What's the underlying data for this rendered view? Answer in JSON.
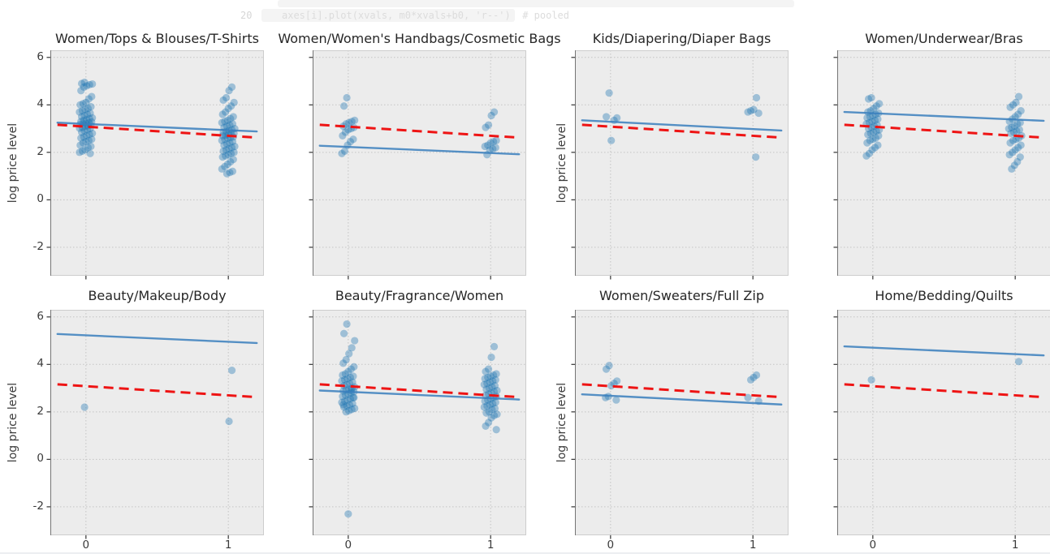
{
  "notebook": {
    "line_number": "20",
    "code_line": "axes[i].plot(xvals, m0*xvals+b0, 'r--')  # pooled"
  },
  "figure": {
    "ylabel": "log price level",
    "yticks": [
      6,
      4,
      2,
      0,
      -2
    ],
    "xticks": [
      0,
      1
    ],
    "ylim": [
      -3.2,
      6.3
    ],
    "xlim": [
      -0.25,
      1.25
    ],
    "grid": true,
    "colors": {
      "panel_bg": "#ececec",
      "grid_line": "#c4c4c4",
      "border": "#cdcdcd",
      "spine": "#757575",
      "tick": "#333333",
      "scatter": "#1f77b4",
      "scatter_alpha": 0.38,
      "group_fit_line": "#3a7fbd",
      "pooled_fit_line": "#ee1414"
    }
  },
  "chart_data": [
    {
      "type": "scatter",
      "title": "Women/Tops & Blouses/T-Shirts",
      "ylabel": "log price level",
      "show_ylabel": true,
      "show_ytick_labels": true,
      "show_xtick_labels": false,
      "points_x0": [
        4.95,
        4.9,
        4.88,
        4.85,
        4.8,
        4.75,
        4.6,
        4.35,
        4.25,
        4.1,
        4.05,
        4.0,
        3.92,
        3.85,
        3.8,
        3.75,
        3.7,
        3.65,
        3.6,
        3.55,
        3.5,
        3.45,
        3.42,
        3.38,
        3.35,
        3.3,
        3.28,
        3.25,
        3.22,
        3.2,
        3.18,
        3.15,
        3.12,
        3.1,
        3.05,
        3.02,
        3.0,
        2.95,
        2.9,
        2.85,
        2.8,
        2.75,
        2.7,
        2.65,
        2.6,
        2.55,
        2.5,
        2.45,
        2.4,
        2.3,
        2.25,
        2.2,
        2.1,
        2.05,
        2.0,
        1.95
      ],
      "points_x1": [
        4.75,
        4.6,
        4.3,
        4.2,
        4.1,
        3.95,
        3.85,
        3.7,
        3.6,
        3.5,
        3.42,
        3.35,
        3.3,
        3.25,
        3.2,
        3.15,
        3.1,
        3.05,
        3.0,
        2.95,
        2.92,
        2.88,
        2.85,
        2.8,
        2.78,
        2.75,
        2.72,
        2.7,
        2.65,
        2.62,
        2.6,
        2.55,
        2.5,
        2.45,
        2.4,
        2.35,
        2.3,
        2.25,
        2.2,
        2.15,
        2.1,
        2.05,
        2.0,
        1.95,
        1.9,
        1.85,
        1.8,
        1.7,
        1.6,
        1.5,
        1.4,
        1.3,
        1.2,
        1.15,
        1.1
      ],
      "group_fit": {
        "x_start": -0.2,
        "x_end": 1.2,
        "y_start": 3.25,
        "y_end": 2.88
      },
      "pooled_fit": {
        "x_start": -0.2,
        "x_end": 1.2,
        "y_start": 3.16,
        "y_end": 2.62
      }
    },
    {
      "type": "scatter",
      "title": "Women/Women's Handbags/Cosmetic Bags",
      "ylabel": "",
      "show_ylabel": false,
      "show_ytick_labels": false,
      "show_xtick_labels": false,
      "points_x0": [
        4.3,
        3.95,
        3.35,
        3.3,
        3.25,
        3.2,
        3.1,
        3.05,
        3.0,
        2.95,
        2.85,
        2.7,
        2.55,
        2.45,
        2.3,
        2.05,
        1.95
      ],
      "points_x1": [
        3.7,
        3.55,
        3.15,
        3.05,
        2.5,
        2.45,
        2.4,
        2.3,
        2.25,
        2.2,
        2.15,
        2.1,
        1.9
      ],
      "group_fit": {
        "x_start": -0.2,
        "x_end": 1.2,
        "y_start": 2.28,
        "y_end": 1.92
      },
      "pooled_fit": {
        "x_start": -0.2,
        "x_end": 1.2,
        "y_start": 3.16,
        "y_end": 2.62
      }
    },
    {
      "type": "scatter",
      "title": "Kids/Diapering/Diaper Bags",
      "ylabel": "log price level",
      "show_ylabel": true,
      "show_ytick_labels": false,
      "show_xtick_labels": false,
      "points_x0": [
        4.5,
        3.5,
        3.45,
        3.35,
        2.5
      ],
      "points_x1": [
        4.3,
        3.8,
        3.75,
        3.7,
        3.65,
        1.8
      ],
      "group_fit": {
        "x_start": -0.2,
        "x_end": 1.2,
        "y_start": 3.35,
        "y_end": 2.92
      },
      "pooled_fit": {
        "x_start": -0.2,
        "x_end": 1.2,
        "y_start": 3.16,
        "y_end": 2.62
      }
    },
    {
      "type": "scatter",
      "title": "Women/Underwear/Bras",
      "ylabel": "",
      "show_ylabel": false,
      "show_ytick_labels": false,
      "show_xtick_labels": false,
      "points_x0": [
        4.3,
        4.25,
        4.05,
        3.95,
        3.85,
        3.75,
        3.7,
        3.65,
        3.6,
        3.55,
        3.5,
        3.45,
        3.4,
        3.35,
        3.3,
        3.25,
        3.2,
        3.15,
        3.1,
        3.05,
        3.0,
        2.95,
        2.9,
        2.85,
        2.8,
        2.75,
        2.7,
        2.6,
        2.55,
        2.5,
        2.4,
        2.3,
        2.2,
        2.1,
        1.95,
        1.85
      ],
      "points_x1": [
        4.35,
        4.1,
        4.0,
        3.9,
        3.75,
        3.6,
        3.5,
        3.4,
        3.3,
        3.25,
        3.2,
        3.1,
        3.05,
        3.0,
        2.95,
        2.9,
        2.85,
        2.8,
        2.7,
        2.6,
        2.55,
        2.5,
        2.4,
        2.3,
        2.2,
        2.1,
        2.0,
        1.9,
        1.8,
        1.6,
        1.45,
        1.3
      ],
      "group_fit": {
        "x_start": -0.2,
        "x_end": 1.2,
        "y_start": 3.7,
        "y_end": 3.33
      },
      "pooled_fit": {
        "x_start": -0.2,
        "x_end": 1.2,
        "y_start": 3.16,
        "y_end": 2.62
      }
    },
    {
      "type": "scatter",
      "title": "Beauty/Makeup/Body",
      "ylabel": "log price level",
      "show_ylabel": true,
      "show_ytick_labels": true,
      "show_xtick_labels": true,
      "points_x0": [
        2.2
      ],
      "points_x1": [
        3.75,
        1.6
      ],
      "group_fit": {
        "x_start": -0.2,
        "x_end": 1.2,
        "y_start": 5.28,
        "y_end": 4.9
      },
      "pooled_fit": {
        "x_start": -0.2,
        "x_end": 1.2,
        "y_start": 3.16,
        "y_end": 2.62
      }
    },
    {
      "type": "scatter",
      "title": "Beauty/Fragrance/Women",
      "ylabel": "",
      "show_ylabel": false,
      "show_ytick_labels": false,
      "show_xtick_labels": true,
      "points_x0": [
        5.7,
        5.3,
        5.0,
        4.7,
        4.45,
        4.2,
        4.05,
        3.9,
        3.8,
        3.7,
        3.6,
        3.55,
        3.5,
        3.45,
        3.4,
        3.35,
        3.3,
        3.25,
        3.2,
        3.15,
        3.1,
        3.05,
        3.0,
        2.95,
        2.92,
        2.88,
        2.85,
        2.8,
        2.75,
        2.7,
        2.65,
        2.6,
        2.55,
        2.5,
        2.45,
        2.4,
        2.35,
        2.3,
        2.25,
        2.2,
        2.15,
        2.1,
        2.05,
        2.0,
        2.3,
        2.6,
        2.9,
        -2.3
      ],
      "points_x1": [
        4.75,
        4.3,
        3.8,
        3.7,
        3.6,
        3.55,
        3.5,
        3.45,
        3.4,
        3.35,
        3.3,
        3.25,
        3.2,
        3.15,
        3.1,
        3.05,
        3.0,
        2.95,
        2.9,
        2.85,
        2.8,
        2.75,
        2.7,
        2.65,
        2.6,
        2.55,
        2.5,
        2.45,
        2.4,
        2.35,
        2.3,
        2.25,
        2.2,
        2.15,
        2.1,
        2.0,
        1.95,
        1.9,
        1.85,
        1.75,
        1.55,
        1.4,
        1.25
      ],
      "group_fit": {
        "x_start": -0.2,
        "x_end": 1.2,
        "y_start": 2.9,
        "y_end": 2.52
      },
      "pooled_fit": {
        "x_start": -0.2,
        "x_end": 1.2,
        "y_start": 3.16,
        "y_end": 2.62
      }
    },
    {
      "type": "scatter",
      "title": "Women/Sweaters/Full Zip",
      "ylabel": "log price level",
      "show_ylabel": true,
      "show_ytick_labels": false,
      "show_xtick_labels": true,
      "points_x0": [
        3.95,
        3.8,
        3.3,
        3.2,
        3.1,
        2.65,
        2.6,
        2.5
      ],
      "points_x1": [
        3.55,
        3.45,
        3.35,
        2.6,
        2.45
      ],
      "group_fit": {
        "x_start": -0.2,
        "x_end": 1.2,
        "y_start": 2.74,
        "y_end": 2.31
      },
      "pooled_fit": {
        "x_start": -0.2,
        "x_end": 1.2,
        "y_start": 3.16,
        "y_end": 2.62
      }
    },
    {
      "type": "scatter",
      "title": "Home/Bedding/Quilts",
      "ylabel": "",
      "show_ylabel": false,
      "show_ytick_labels": false,
      "show_xtick_labels": true,
      "points_x0": [
        3.35
      ],
      "points_x1": [
        4.12
      ],
      "group_fit": {
        "x_start": -0.2,
        "x_end": 1.2,
        "y_start": 4.76,
        "y_end": 4.38
      },
      "pooled_fit": {
        "x_start": -0.2,
        "x_end": 1.2,
        "y_start": 3.16,
        "y_end": 2.62
      }
    }
  ]
}
